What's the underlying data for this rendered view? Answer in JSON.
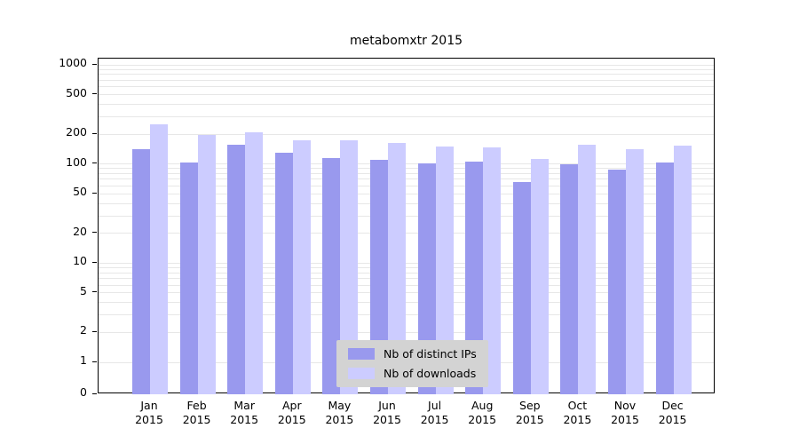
{
  "title": "metabomxtr 2015",
  "chart_data": {
    "type": "bar",
    "y_scale": "log",
    "title": "metabomxtr 2015",
    "categories": [
      "Jan",
      "Feb",
      "Mar",
      "Apr",
      "May",
      "Jun",
      "Jul",
      "Aug",
      "Sep",
      "Oct",
      "Nov",
      "Dec"
    ],
    "year_label": "2015",
    "series": [
      {
        "name": "Nb of distinct IPs",
        "color": "#9999ee",
        "values": [
          140,
          103,
          155,
          130,
          114,
          111,
          102,
          105,
          66,
          100,
          88,
          104
        ]
      },
      {
        "name": "Nb of downloads",
        "color": "#ccccff",
        "values": [
          250,
          195,
          207,
          172,
          173,
          164,
          151,
          147,
          112,
          157,
          140,
          153
        ]
      }
    ],
    "yticks": [
      0,
      1,
      2,
      5,
      10,
      20,
      50,
      100,
      200,
      500,
      1000
    ],
    "ylim": [
      0,
      1000
    ],
    "grid": true,
    "legend_position": "bottom-center-inside"
  }
}
